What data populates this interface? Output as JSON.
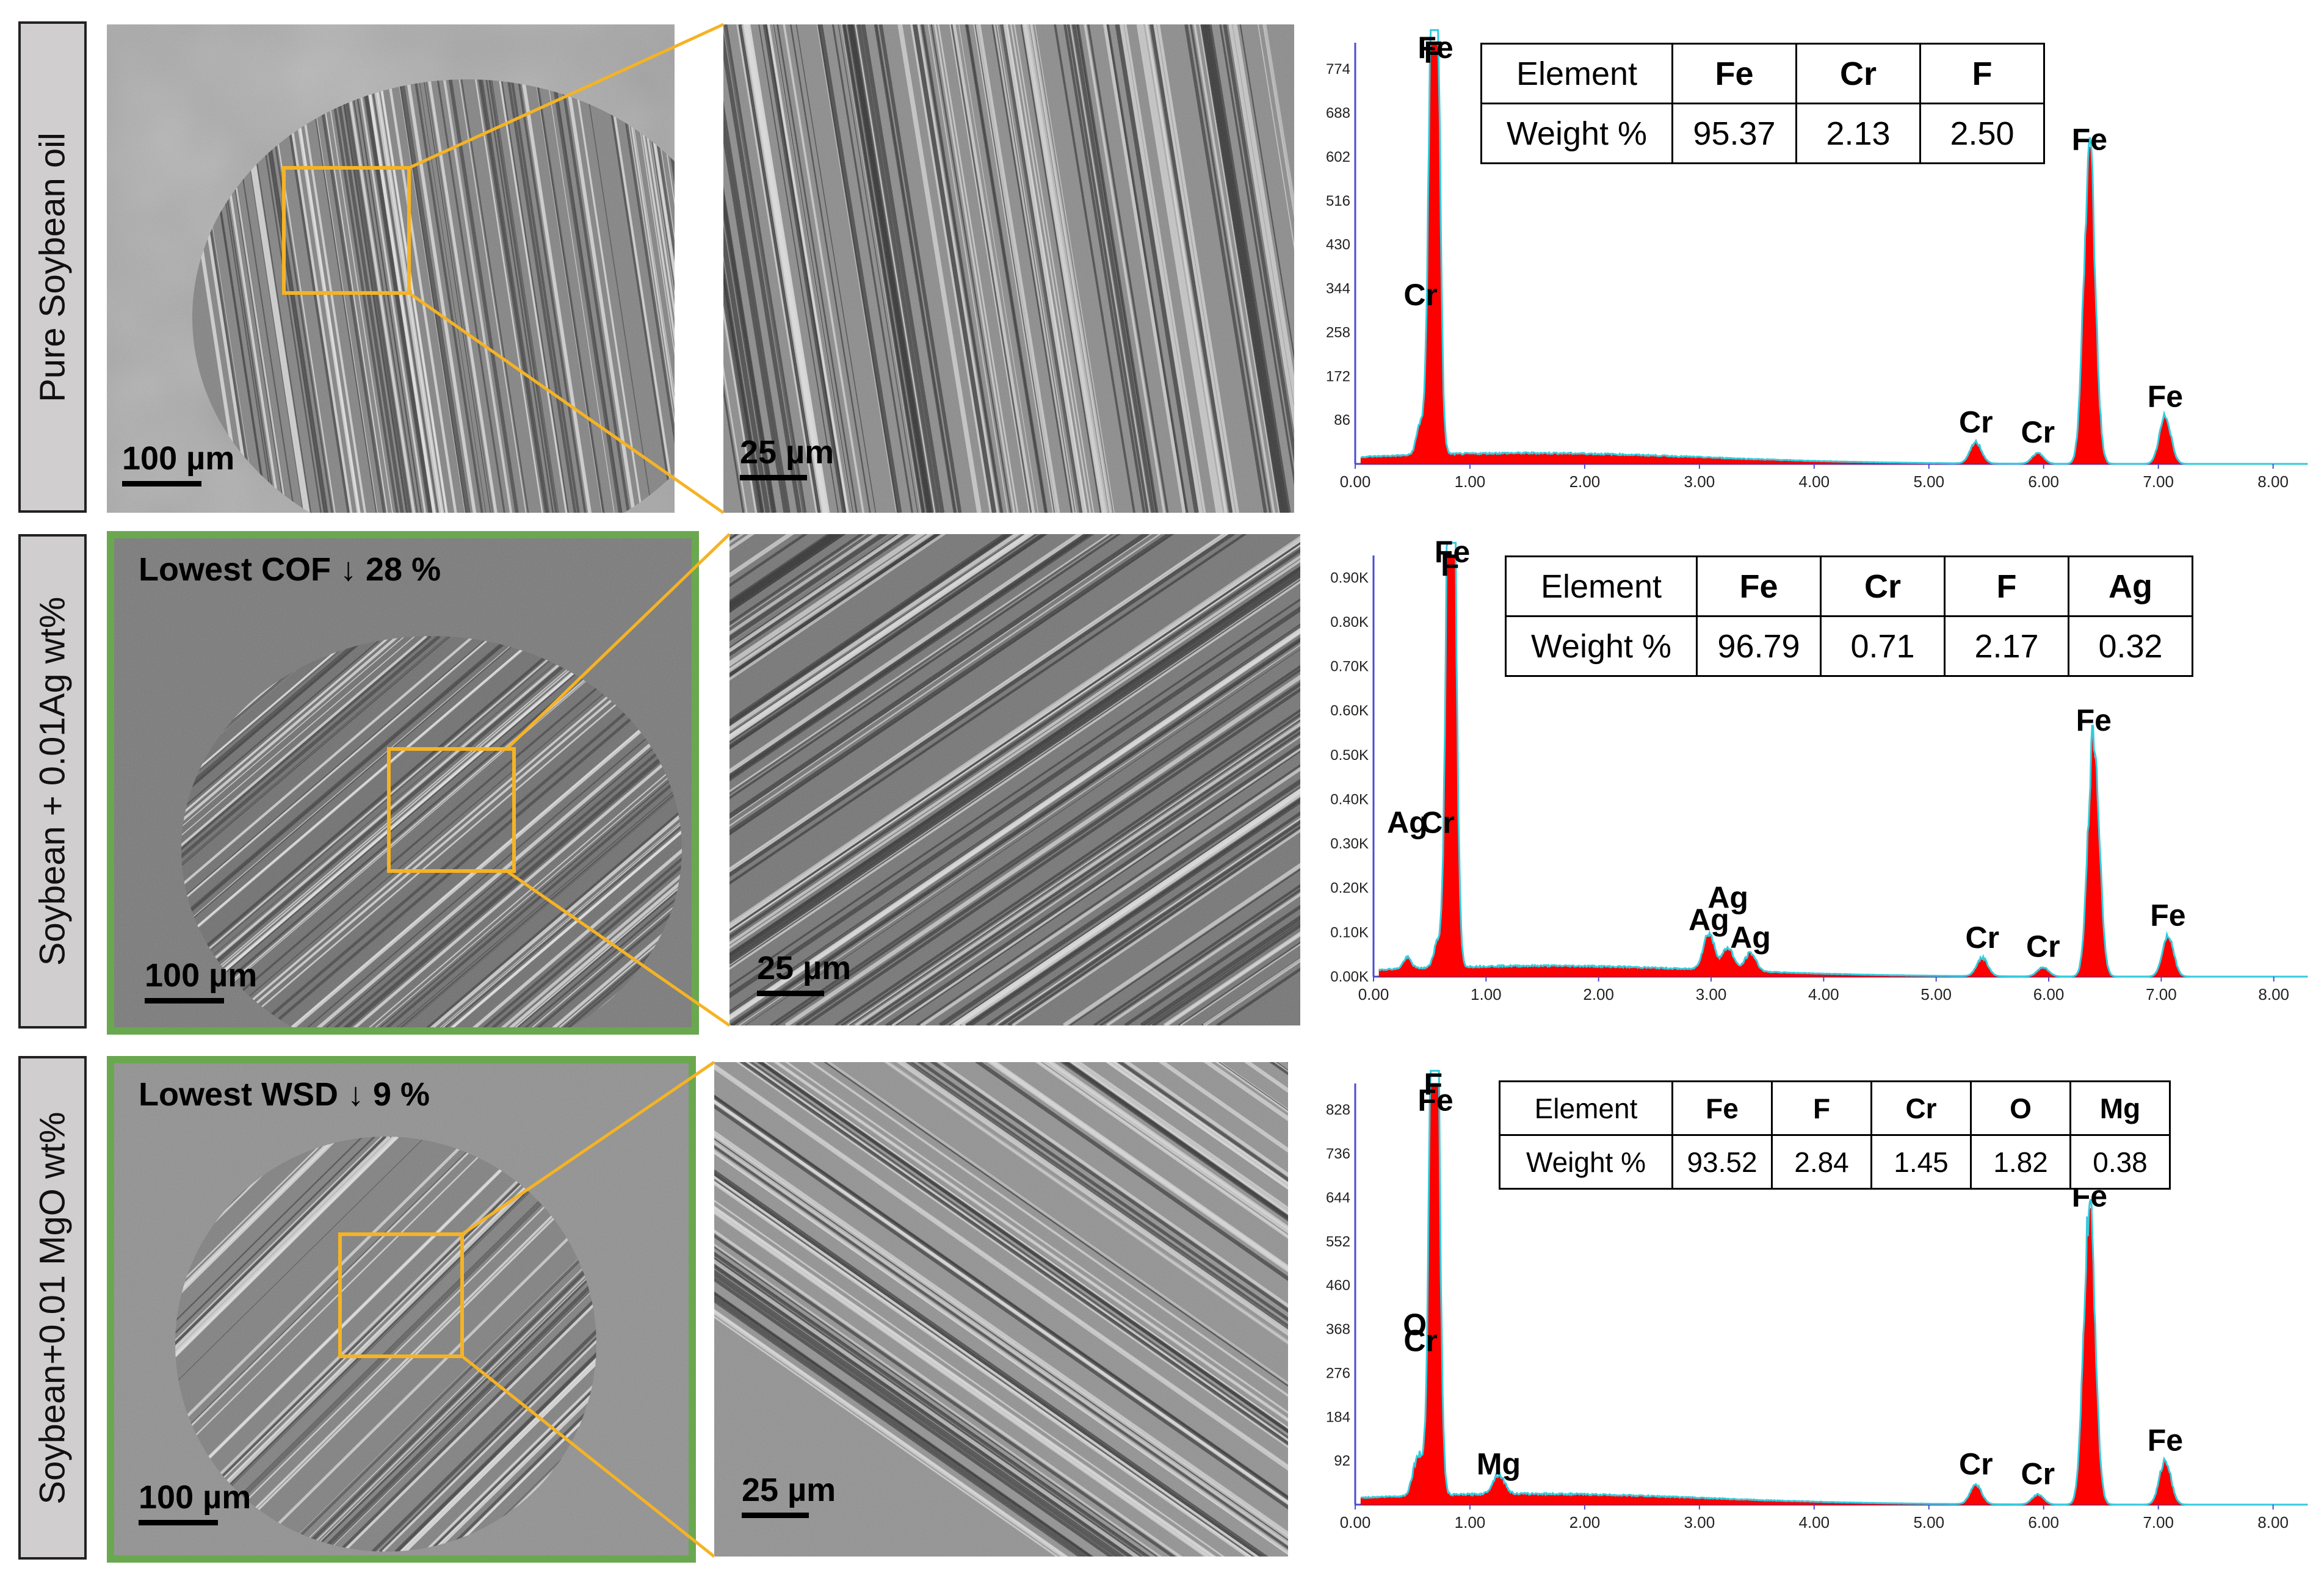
{
  "rows": [
    {
      "label": "Pure Soybean oil",
      "highlight": "",
      "scale_low": "100 µm",
      "scale_high": "25 µm",
      "table": {
        "header": [
          "Element",
          "Fe",
          "Cr",
          "F"
        ],
        "weights": [
          "Weight %",
          "95.37",
          "2.13",
          "2.50"
        ]
      },
      "chart_data": {
        "type": "area",
        "xlabel": "",
        "ylabel": "",
        "x_ticks": [
          "0.00",
          "1.00",
          "2.00",
          "3.00",
          "4.00",
          "5.00",
          "6.00",
          "7.00",
          "8.00"
        ],
        "xlim": [
          0,
          8.3
        ],
        "y_ticks": [
          "86",
          "172",
          "258",
          "344",
          "430",
          "516",
          "602",
          "688",
          "774"
        ],
        "ylim": [
          0,
          820
        ],
        "peaks": [
          {
            "label": "F",
            "x": 0.68,
            "y": 760
          },
          {
            "label": "Fe",
            "x": 0.7,
            "y": 700
          },
          {
            "label": "Cr",
            "x": 0.57,
            "y": 150
          },
          {
            "label": "Cr",
            "x": 5.41,
            "y": 40
          },
          {
            "label": "Cr",
            "x": 5.95,
            "y": 20
          },
          {
            "label": "Fe",
            "x": 6.4,
            "y": 590
          },
          {
            "label": "Fe",
            "x": 7.06,
            "y": 90
          }
        ]
      }
    },
    {
      "label": "Soybean + 0.01Ag wt%",
      "highlight": "Lowest COF ↓ 28 %",
      "scale_low": "100 µm",
      "scale_high": "25 µm",
      "table": {
        "header": [
          "Element",
          "Fe",
          "Cr",
          "F",
          "Ag"
        ],
        "weights": [
          "Weight %",
          "96.79",
          "0.71",
          "2.17",
          "0.32"
        ]
      },
      "chart_data": {
        "type": "area",
        "xlabel": "",
        "ylabel": "",
        "x_ticks": [
          "0.00",
          "1.00",
          "2.00",
          "3.00",
          "4.00",
          "5.00",
          "6.00",
          "7.00",
          "8.00"
        ],
        "xlim": [
          0,
          8.3
        ],
        "y_ticks": [
          "0.00K",
          "0.10K",
          "0.20K",
          "0.30K",
          "0.40K",
          "0.50K",
          "0.60K",
          "0.70K",
          "0.80K",
          "0.90K"
        ],
        "ylim": [
          0,
          0.95
        ],
        "peaks": [
          {
            "label": "F",
            "x": 0.68,
            "y": 0.88
          },
          {
            "label": "Fe",
            "x": 0.7,
            "y": 0.83
          },
          {
            "label": "Cr",
            "x": 0.57,
            "y": 0.14
          },
          {
            "label": "Ag",
            "x": 0.3,
            "y": 0.06
          },
          {
            "label": "Ag",
            "x": 2.98,
            "y": 0.08
          },
          {
            "label": "Ag",
            "x": 3.15,
            "y": 0.05
          },
          {
            "label": "Ag",
            "x": 3.35,
            "y": 0.04
          },
          {
            "label": "Cr",
            "x": 5.41,
            "y": 0.04
          },
          {
            "label": "Cr",
            "x": 5.95,
            "y": 0.02
          },
          {
            "label": "Fe",
            "x": 6.4,
            "y": 0.53
          },
          {
            "label": "Fe",
            "x": 7.06,
            "y": 0.09
          }
        ]
      }
    },
    {
      "label": "Soybean+0.01 MgO wt%",
      "highlight": "Lowest WSD ↓ 9 %",
      "scale_low": "100 µm",
      "scale_high": "25 µm",
      "table": {
        "header": [
          "Element",
          "Fe",
          "F",
          "Cr",
          "O",
          "Mg"
        ],
        "weights": [
          "Weight %",
          "93.52",
          "2.84",
          "1.45",
          "1.82",
          "0.38"
        ]
      },
      "chart_data": {
        "type": "area",
        "xlabel": "",
        "ylabel": "",
        "x_ticks": [
          "0.00",
          "1.00",
          "2.00",
          "3.00",
          "4.00",
          "5.00",
          "6.00",
          "7.00",
          "8.00"
        ],
        "xlim": [
          0,
          8.3
        ],
        "y_ticks": [
          "92",
          "184",
          "276",
          "368",
          "460",
          "552",
          "644",
          "736",
          "828"
        ],
        "ylim": [
          0,
          880
        ],
        "peaks": [
          {
            "label": "Fe",
            "x": 0.7,
            "y": 800
          },
          {
            "label": "F",
            "x": 0.68,
            "y": 760
          },
          {
            "label": "Cr",
            "x": 0.57,
            "y": 150
          },
          {
            "label": "O",
            "x": 0.52,
            "y": 110
          },
          {
            "label": "Mg",
            "x": 1.25,
            "y": 40
          },
          {
            "label": "Cr",
            "x": 5.41,
            "y": 40
          },
          {
            "label": "Cr",
            "x": 5.95,
            "y": 20
          },
          {
            "label": "Fe",
            "x": 6.4,
            "y": 600
          },
          {
            "label": "Fe",
            "x": 7.06,
            "y": 90
          }
        ]
      }
    }
  ]
}
